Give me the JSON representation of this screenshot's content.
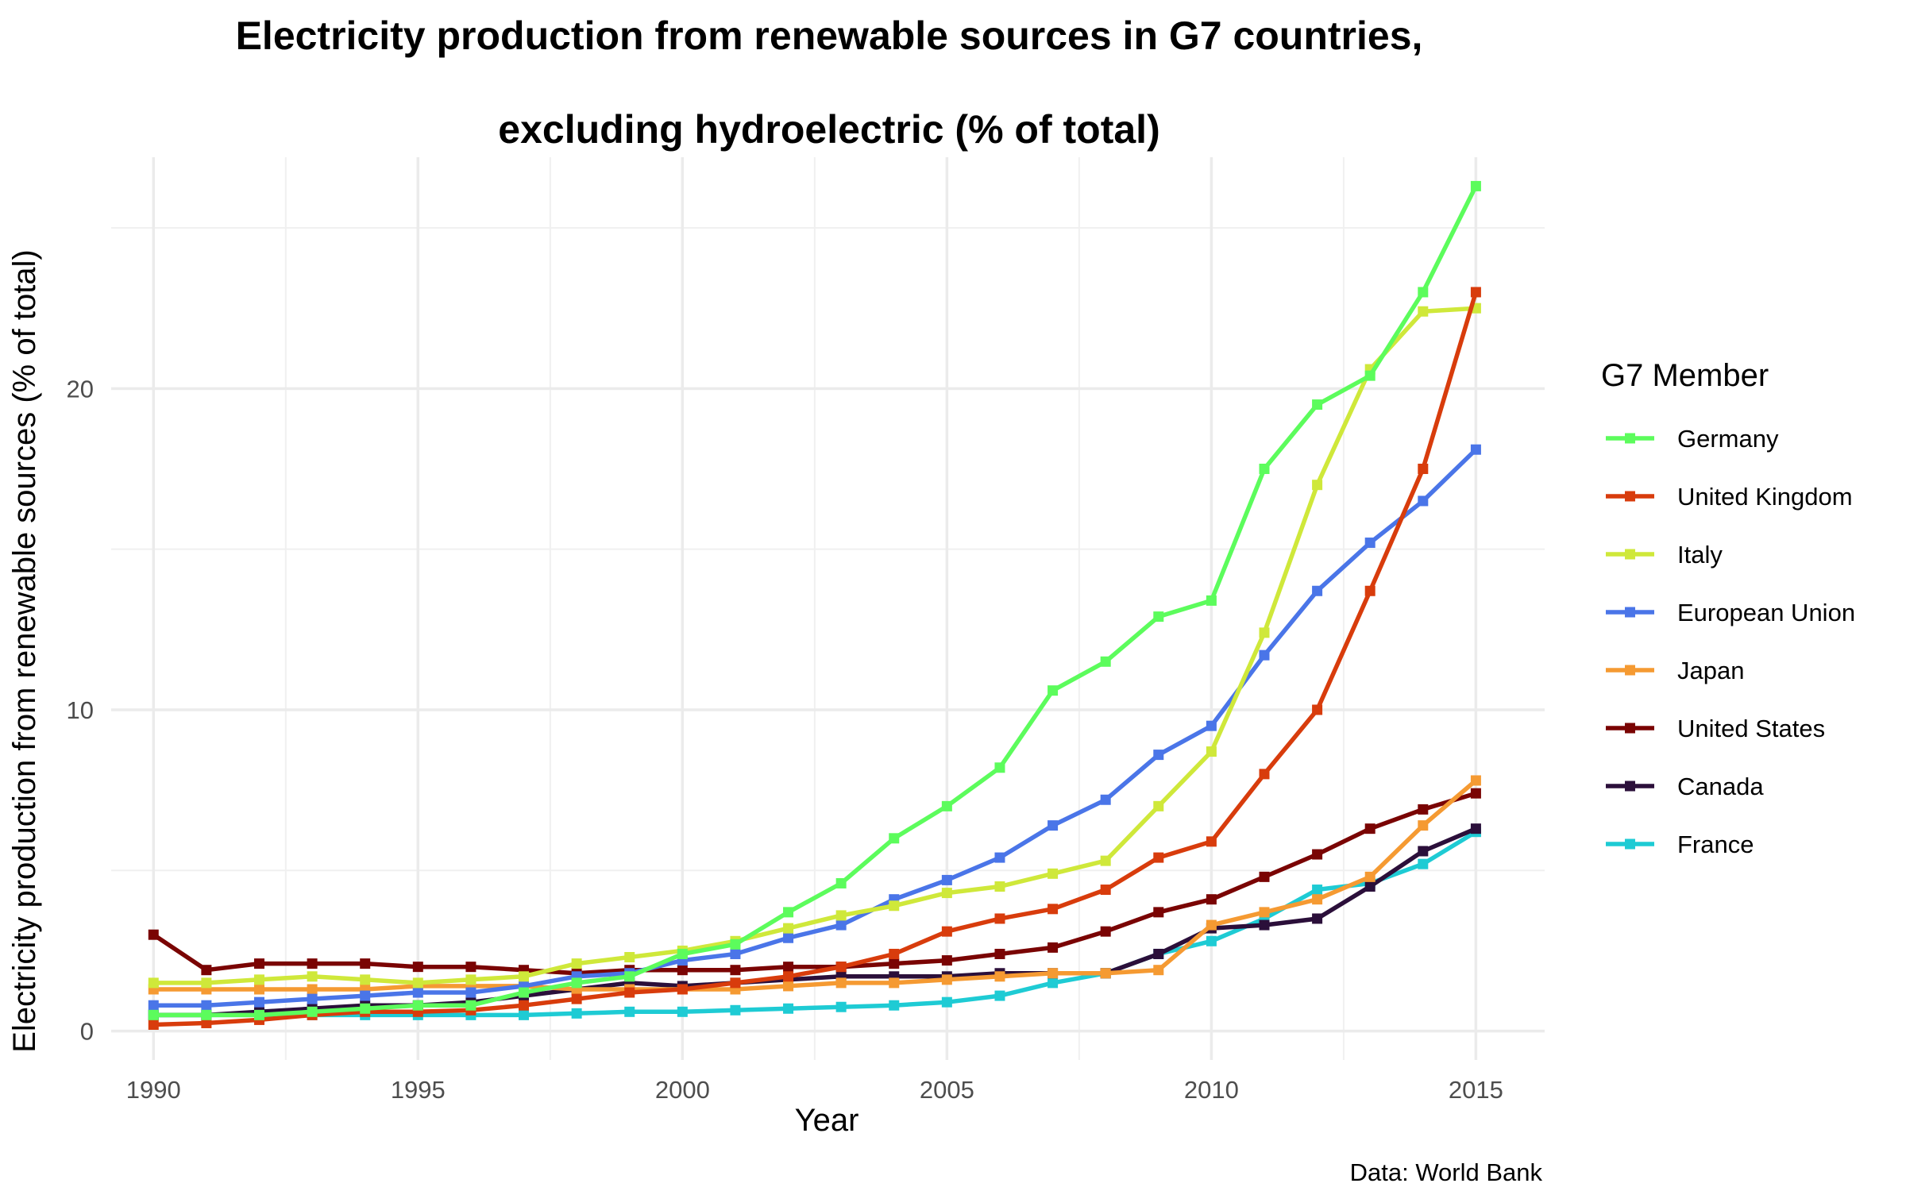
{
  "chart_data": {
    "type": "line",
    "title_line1": "Electricity production from renewable sources in G7 countries,",
    "title_line2": "excluding hydroelectric (% of total)",
    "xlabel": "Year",
    "ylabel": "Electricity production from renewable sources (% of total)",
    "caption": "Data: World Bank",
    "legend_title": "G7 Member",
    "legend_position": "right",
    "grid": true,
    "xlim": [
      1989.2,
      2016.3
    ],
    "ylim": [
      -0.9,
      27.2
    ],
    "x_ticks": [
      1990,
      1995,
      2000,
      2005,
      2010,
      2015
    ],
    "y_ticks": [
      0,
      10,
      20
    ],
    "x": [
      1990,
      1991,
      1992,
      1993,
      1994,
      1995,
      1996,
      1997,
      1998,
      1999,
      2000,
      2001,
      2002,
      2003,
      2004,
      2005,
      2006,
      2007,
      2008,
      2009,
      2010,
      2011,
      2012,
      2013,
      2014,
      2015
    ],
    "series": [
      {
        "name": "Germany",
        "color": "#5cfc5c",
        "values": [
          0.5,
          0.5,
          0.5,
          0.6,
          0.7,
          0.8,
          0.8,
          1.2,
          1.5,
          1.7,
          2.4,
          2.7,
          3.7,
          4.6,
          6.0,
          7.0,
          8.2,
          10.6,
          11.5,
          12.9,
          13.4,
          17.5,
          19.5,
          20.4,
          23.0,
          26.3
        ]
      },
      {
        "name": "United Kingdom",
        "color": "#d83c0c",
        "values": [
          0.2,
          0.25,
          0.35,
          0.5,
          0.6,
          0.6,
          0.65,
          0.8,
          1.0,
          1.2,
          1.3,
          1.5,
          1.7,
          2.0,
          2.4,
          3.1,
          3.5,
          3.8,
          4.4,
          5.4,
          5.9,
          8.0,
          10.0,
          13.7,
          17.5,
          23.0
        ]
      },
      {
        "name": "Italy",
        "color": "#cfe83a",
        "values": [
          1.5,
          1.5,
          1.6,
          1.7,
          1.6,
          1.5,
          1.6,
          1.7,
          2.1,
          2.3,
          2.5,
          2.8,
          3.2,
          3.6,
          3.9,
          4.3,
          4.5,
          4.9,
          5.3,
          7.0,
          8.7,
          12.4,
          17.0,
          20.6,
          22.4,
          22.5
        ]
      },
      {
        "name": "European Union",
        "color": "#4a75e8",
        "values": [
          0.8,
          0.8,
          0.9,
          1.0,
          1.1,
          1.2,
          1.2,
          1.4,
          1.7,
          1.8,
          2.2,
          2.4,
          2.9,
          3.3,
          4.1,
          4.7,
          5.4,
          6.4,
          7.2,
          8.6,
          9.5,
          11.7,
          13.7,
          15.2,
          16.5,
          18.1
        ]
      },
      {
        "name": "Japan",
        "color": "#f59a32",
        "values": [
          1.3,
          1.3,
          1.3,
          1.3,
          1.3,
          1.4,
          1.4,
          1.4,
          1.3,
          1.3,
          1.3,
          1.3,
          1.4,
          1.5,
          1.5,
          1.6,
          1.7,
          1.8,
          1.8,
          1.9,
          3.3,
          3.7,
          4.1,
          4.8,
          6.4,
          7.8
        ]
      },
      {
        "name": "United States",
        "color": "#7a0403",
        "values": [
          3.0,
          1.9,
          2.1,
          2.1,
          2.1,
          2.0,
          2.0,
          1.9,
          1.8,
          1.9,
          1.9,
          1.9,
          2.0,
          2.0,
          2.1,
          2.2,
          2.4,
          2.6,
          3.1,
          3.7,
          4.1,
          4.8,
          5.5,
          6.3,
          6.9,
          7.4
        ]
      },
      {
        "name": "Canada",
        "color": "#2b0f3a",
        "values": [
          0.5,
          0.5,
          0.6,
          0.7,
          0.8,
          0.8,
          0.9,
          1.1,
          1.3,
          1.5,
          1.4,
          1.5,
          1.6,
          1.7,
          1.7,
          1.7,
          1.8,
          1.8,
          1.8,
          2.4,
          3.2,
          3.3,
          3.5,
          4.5,
          5.6,
          6.3
        ]
      },
      {
        "name": "France",
        "color": "#1ecbd4",
        "values": [
          0.5,
          0.5,
          0.5,
          0.5,
          0.5,
          0.5,
          0.5,
          0.5,
          0.55,
          0.6,
          0.6,
          0.65,
          0.7,
          0.75,
          0.8,
          0.9,
          1.1,
          1.5,
          1.8,
          2.4,
          2.8,
          3.5,
          4.4,
          4.6,
          5.2,
          6.2
        ]
      }
    ]
  }
}
